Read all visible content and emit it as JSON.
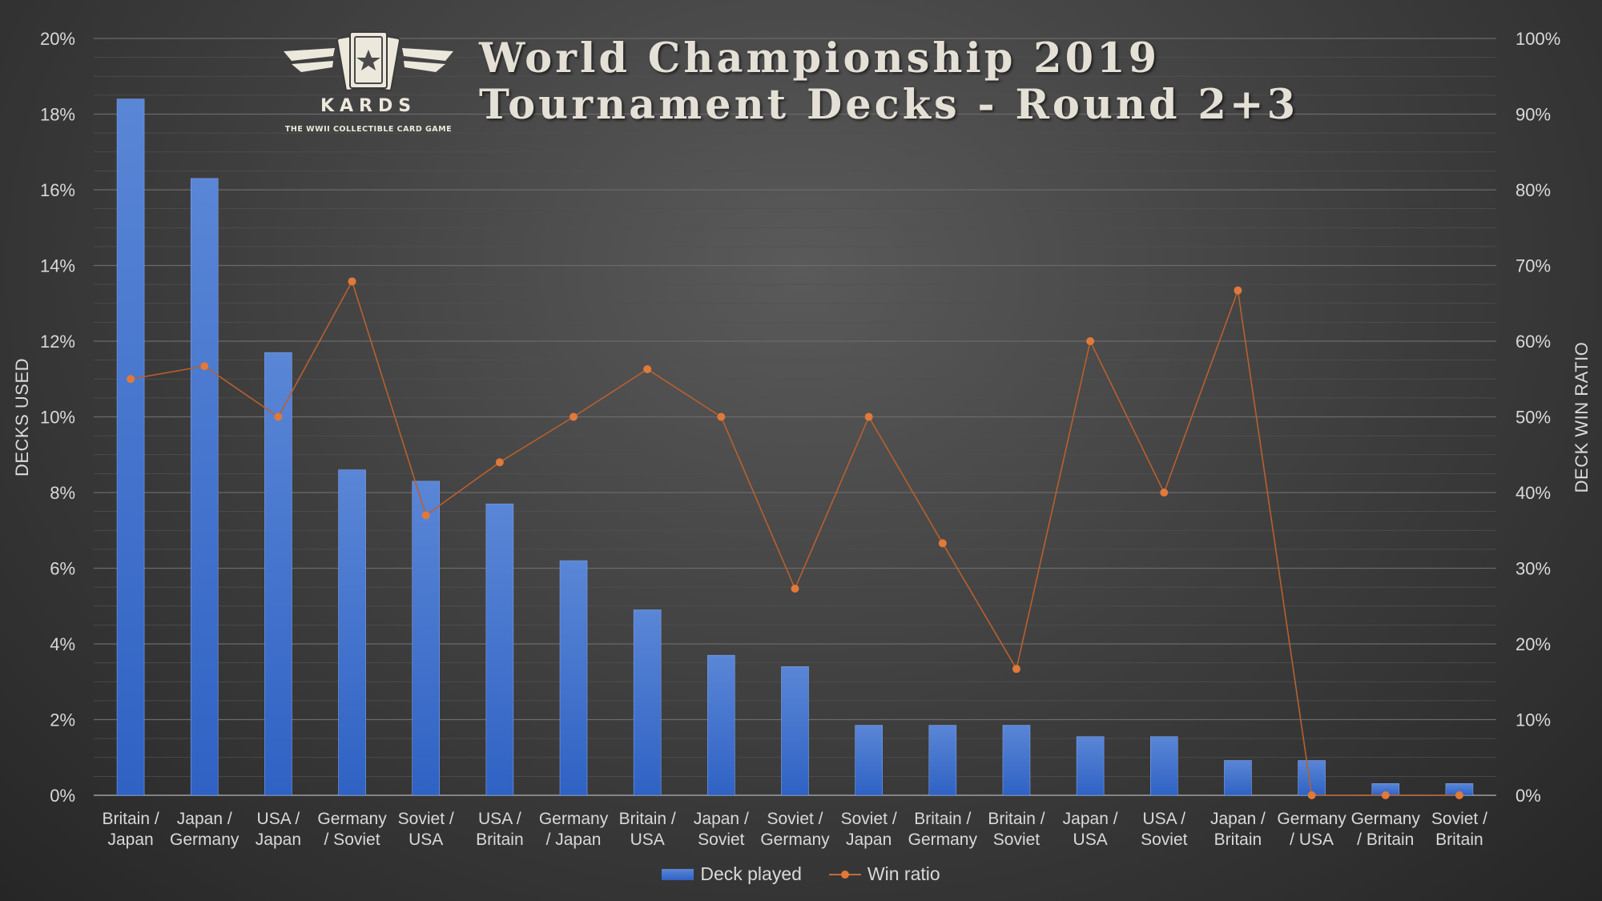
{
  "header": {
    "title_line1": "World Championship 2019",
    "title_line2": "Tournament Decks - Round 2+3",
    "logo_word": "KARDS",
    "logo_tagline": "THE WWII COLLECTIBLE CARD GAME"
  },
  "legend": {
    "bars_label": "Deck played",
    "line_label": "Win ratio"
  },
  "colors": {
    "bar_top": "#5a86d6",
    "bar_bottom": "#2f62c4",
    "line": "#b8602f",
    "marker": "#e0793a",
    "gridline": "#6a6a6a"
  },
  "chart_data": {
    "type": "bar",
    "combo": "bar + line (secondary axis)",
    "categories": [
      "Britain / Japan",
      "Japan / Germany",
      "USA / Japan",
      "Germany / Soviet",
      "Soviet / USA",
      "USA / Britain",
      "Germany / Japan",
      "Britain / USA",
      "Japan / Soviet",
      "Soviet / Germany",
      "Soviet / Japan",
      "Britain / Germany",
      "Britain / Soviet",
      "Japan / USA",
      "USA / Soviet",
      "Japan / Britain",
      "Germany / USA",
      "Germany / Britain",
      "Soviet / Britain"
    ],
    "category_lines": [
      [
        "Britain /",
        "Japan"
      ],
      [
        "Japan /",
        "Germany"
      ],
      [
        "USA /",
        "Japan"
      ],
      [
        "Germany",
        "/ Soviet"
      ],
      [
        "Soviet /",
        "USA"
      ],
      [
        "USA /",
        "Britain"
      ],
      [
        "Germany",
        "/ Japan"
      ],
      [
        "Britain /",
        "USA"
      ],
      [
        "Japan /",
        "Soviet"
      ],
      [
        "Soviet /",
        "Germany"
      ],
      [
        "Soviet /",
        "Japan"
      ],
      [
        "Britain /",
        "Germany"
      ],
      [
        "Britain /",
        "Soviet"
      ],
      [
        "Japan /",
        "USA"
      ],
      [
        "USA /",
        "Soviet"
      ],
      [
        "Japan /",
        "Britain"
      ],
      [
        "Germany",
        "/ USA"
      ],
      [
        "Germany",
        "/ Britain"
      ],
      [
        "Soviet /",
        "Britain"
      ]
    ],
    "series": [
      {
        "name": "Deck played",
        "type": "bar",
        "axis": "left",
        "values": [
          18.4,
          16.3,
          11.7,
          8.6,
          8.3,
          7.7,
          6.2,
          4.9,
          3.7,
          3.4,
          1.85,
          1.85,
          1.85,
          1.55,
          1.55,
          0.92,
          0.92,
          0.31,
          0.31
        ]
      },
      {
        "name": "Win ratio",
        "type": "line",
        "axis": "right",
        "values": [
          55,
          56.7,
          50,
          67.9,
          37,
          44,
          50,
          56.3,
          50,
          27.3,
          50,
          33.3,
          16.7,
          60,
          40,
          66.7,
          0,
          0,
          0
        ]
      }
    ],
    "ylabel": "DECKS USED",
    "y2label": "DECK WIN RATIO",
    "ylim": [
      0,
      20
    ],
    "y2lim": [
      0,
      100
    ],
    "yticks": [
      "0%",
      "2%",
      "4%",
      "6%",
      "8%",
      "10%",
      "12%",
      "14%",
      "16%",
      "18%",
      "20%"
    ],
    "y2ticks": [
      "0%",
      "10%",
      "20%",
      "30%",
      "40%",
      "50%",
      "60%",
      "70%",
      "80%",
      "90%",
      "100%"
    ],
    "grid": true,
    "legend_position": "bottom"
  }
}
